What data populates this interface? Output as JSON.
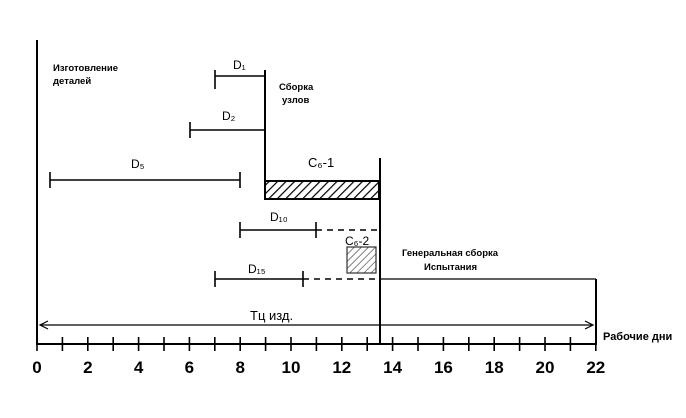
{
  "labels": {
    "parts_line1": "Изготовление",
    "parts_line2": "деталей",
    "assembly_line1": "Сборка",
    "assembly_line2": "узлов",
    "d1": "D₁",
    "d2": "D₂",
    "d5": "D₅",
    "d10": "D₁₀",
    "d15": "D₁₅",
    "c6_1": "C₆-1",
    "c6_2": "C₆-2",
    "general_line1": "Генеральная сборка",
    "general_line2": "Испытания",
    "cycle": "Тц изд.",
    "axis_unit": "Рабочие дни"
  },
  "axis": {
    "ticks": [
      "0",
      "2",
      "4",
      "6",
      "8",
      "10",
      "12",
      "14",
      "16",
      "18",
      "20",
      "22"
    ]
  },
  "colors": {
    "ink": "#000000",
    "hatch_bar": "#000000",
    "hatch_box": "#333333"
  }
}
